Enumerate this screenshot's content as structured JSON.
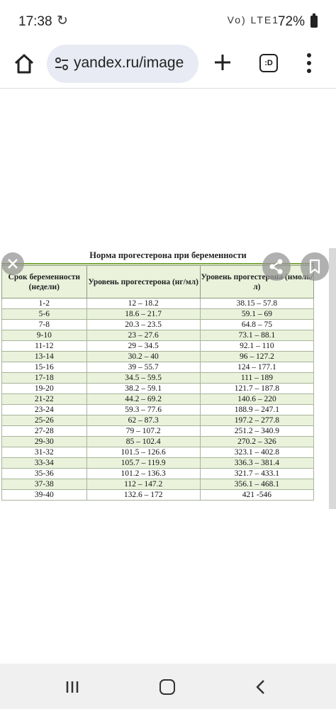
{
  "status_bar": {
    "time": "17:38",
    "signal_text": "Vo) LTE1",
    "battery": "72%"
  },
  "browser": {
    "url": "yandex.ru/image",
    "tabs_label": ":D"
  },
  "table": {
    "title": "Норма прогестерона при беременности",
    "headers": [
      "Срок беременности (недели)",
      "Уровень прогестерона (нг/мл)",
      "Уровень прогестерона (нмоль/л)"
    ],
    "rows": [
      [
        "1-2",
        "12 – 18.2",
        "38.15 – 57.8"
      ],
      [
        "5-6",
        "18.6 – 21.7",
        "59.1 – 69"
      ],
      [
        "7-8",
        "20.3 – 23.5",
        "64.8 – 75"
      ],
      [
        "9-10",
        "23 – 27.6",
        "73.1 – 88.1"
      ],
      [
        "11-12",
        "29 – 34.5",
        "92.1 – 110"
      ],
      [
        "13-14",
        "30.2 – 40",
        "96 – 127.2"
      ],
      [
        "15-16",
        "39 – 55.7",
        "124 – 177.1"
      ],
      [
        "17-18",
        "34.5 – 59.5",
        "111 – 189"
      ],
      [
        "19-20",
        "38.2 – 59.1",
        "121.7 – 187.8"
      ],
      [
        "21-22",
        "44.2 – 69.2",
        "140.6 – 220"
      ],
      [
        "23-24",
        "59.3 – 77.6",
        "188.9 – 247.1"
      ],
      [
        "25-26",
        "62 – 87.3",
        "197.2 – 277.8"
      ],
      [
        "27-28",
        "79 – 107.2",
        "251.2 – 340.9"
      ],
      [
        "29-30",
        "85 – 102.4",
        "270.2 – 326"
      ],
      [
        "31-32",
        "101.5 – 126.6",
        "323.1 – 402.8"
      ],
      [
        "33-34",
        "105.7 – 119.9",
        "336.3 – 381.4"
      ],
      [
        "35-36",
        "101.2 – 136.3",
        "321.7 – 433.1"
      ],
      [
        "37-38",
        "112 – 147.2",
        "356.1 – 468.1"
      ],
      [
        "39-40",
        "132.6 – 172",
        "421 -546"
      ]
    ]
  },
  "colors": {
    "header_bg": "#eaf2dc",
    "accent_line": "#7ca83c"
  }
}
